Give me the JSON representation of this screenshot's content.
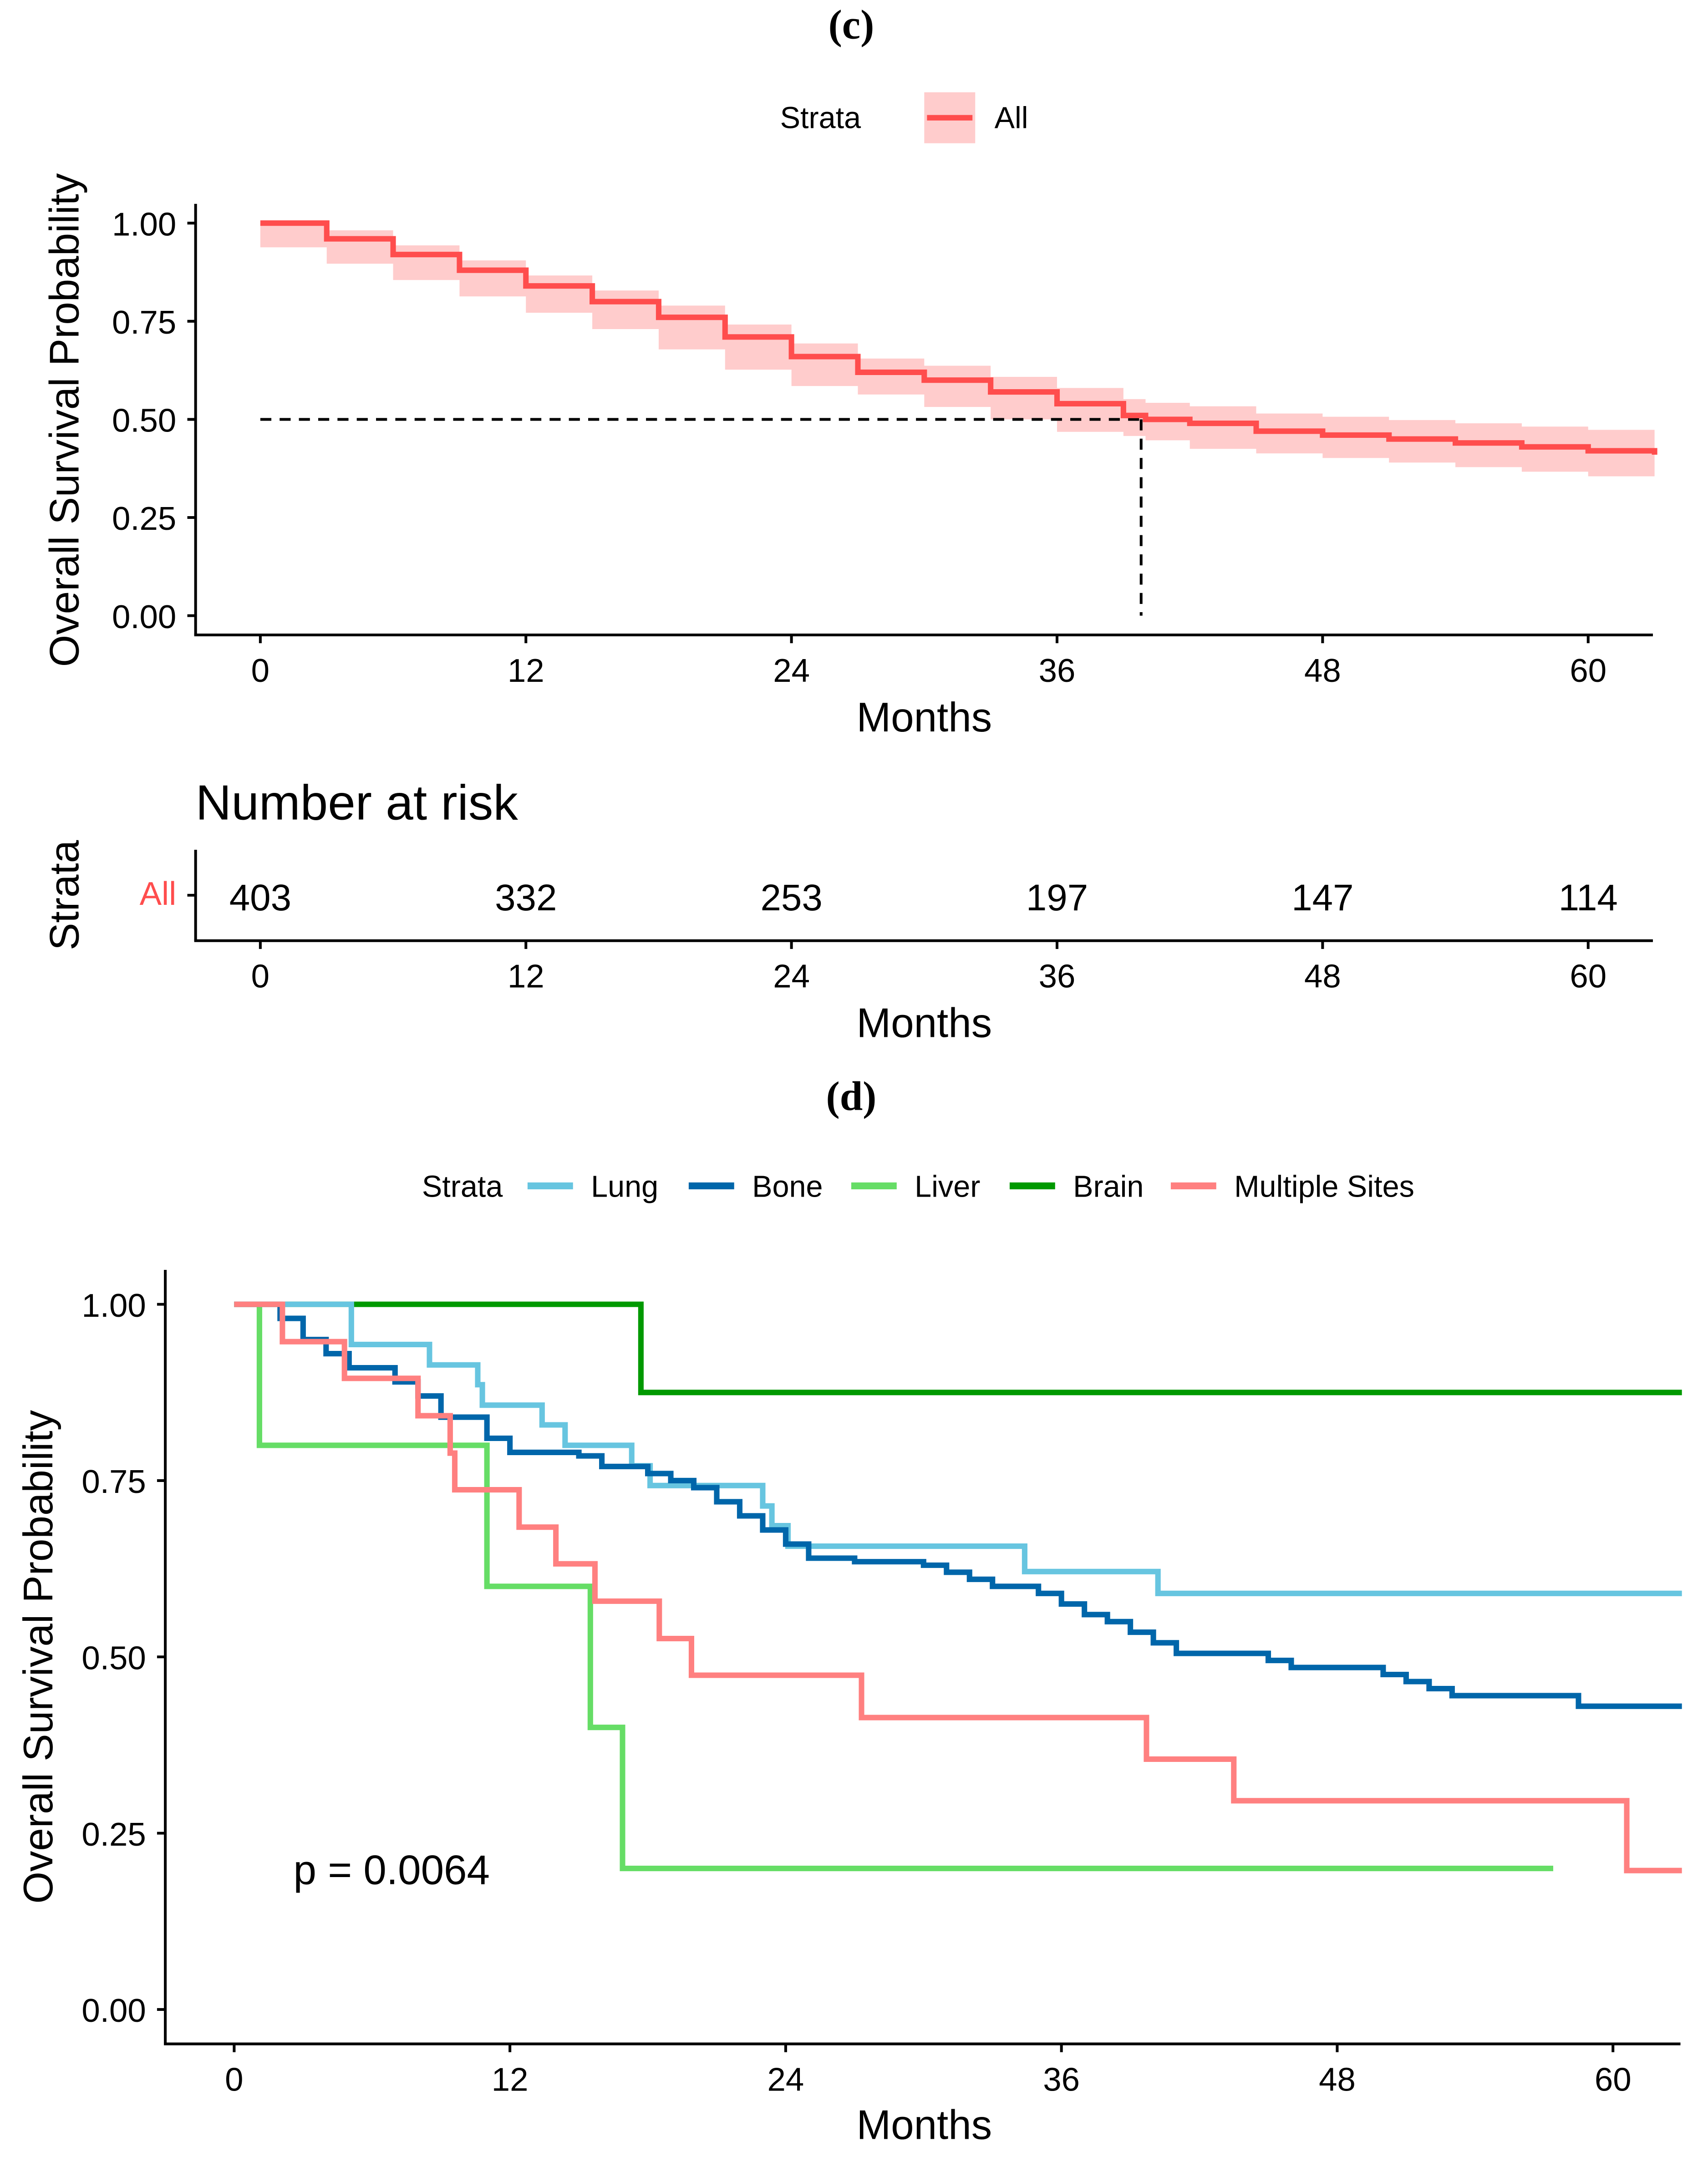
{
  "chart_data": [
    {
      "type": "line",
      "panel_label": "(c)",
      "legend": {
        "title": "Strata",
        "entries": [
          "All"
        ],
        "placement": "top"
      },
      "xlabel": "Months",
      "ylabel": "Overall Survival Probability",
      "xlim": [
        -3,
        63
      ],
      "ylim": [
        0,
        1
      ],
      "xticks": [
        "0",
        "12",
        "24",
        "36",
        "48",
        "60"
      ],
      "yticks": [
        "0.00",
        "0.25",
        "0.50",
        "0.75",
        "1.00"
      ],
      "color": "#ff4d4d",
      "band_color": "#ffcccc",
      "median_survival_months": 39.8,
      "series": [
        {
          "name": "All",
          "x": [
            0,
            3,
            6,
            9,
            12,
            15,
            18,
            21,
            24,
            27,
            30,
            33,
            36,
            39,
            40,
            42,
            45,
            48,
            51,
            54,
            57,
            60,
            63
          ],
          "y": [
            1,
            0.96,
            0.92,
            0.88,
            0.84,
            0.8,
            0.76,
            0.71,
            0.66,
            0.62,
            0.6,
            0.57,
            0.54,
            0.51,
            0.5,
            0.49,
            0.47,
            0.46,
            0.45,
            0.44,
            0.43,
            0.42,
            0.41
          ]
        }
      ],
      "risk_table": {
        "title": "Number at risk",
        "ylabel": "Strata",
        "xlabel": "Months",
        "row_label": "All",
        "times": [
          "0",
          "12",
          "24",
          "36",
          "48",
          "60"
        ],
        "counts": [
          "403",
          "332",
          "253",
          "197",
          "147",
          "114"
        ]
      }
    },
    {
      "type": "line",
      "panel_label": "(d)",
      "legend": {
        "title": "Strata",
        "entries": [
          "Lung",
          "Bone",
          "Liver",
          "Brain",
          "Multiple Sites"
        ],
        "placement": "top"
      },
      "xlabel": "Months",
      "ylabel": "Overall Survival Probability",
      "xlim": [
        -3,
        63
      ],
      "ylim": [
        -0.02,
        1.05
      ],
      "xticks": [
        "0",
        "12",
        "24",
        "36",
        "48",
        "60"
      ],
      "yticks": [
        "0.00",
        "0.25",
        "0.50",
        "0.75",
        "1.00"
      ],
      "annotation": "p = 0.0064",
      "series": [
        {
          "name": "Lung",
          "color": "#67c5e0",
          "x": [
            0,
            5.1,
            8.5,
            10.6,
            10.8,
            13.4,
            14.4,
            17.3,
            18.1,
            23,
            23.4,
            24.1,
            34.4,
            40.2,
            63
          ],
          "y": [
            1,
            0.943,
            0.914,
            0.886,
            0.857,
            0.829,
            0.8,
            0.771,
            0.743,
            0.714,
            0.686,
            0.657,
            0.621,
            0.59,
            0.59
          ]
        },
        {
          "name": "Bone",
          "color": "#0066aa",
          "x": [
            0,
            2,
            3,
            4,
            5,
            7,
            8,
            9,
            11,
            12,
            15,
            16,
            18,
            19,
            20,
            21,
            22,
            23,
            24,
            25,
            27,
            30,
            31,
            32,
            33,
            35,
            36,
            37,
            38,
            39,
            40,
            41,
            44,
            45,
            46,
            48,
            50,
            51,
            52,
            53,
            58.5,
            63
          ],
          "y": [
            1,
            0.98,
            0.95,
            0.93,
            0.91,
            0.89,
            0.87,
            0.84,
            0.81,
            0.79,
            0.785,
            0.77,
            0.76,
            0.75,
            0.74,
            0.72,
            0.7,
            0.68,
            0.66,
            0.64,
            0.635,
            0.63,
            0.62,
            0.61,
            0.6,
            0.59,
            0.575,
            0.56,
            0.55,
            0.535,
            0.52,
            0.505,
            0.505,
            0.495,
            0.485,
            0.485,
            0.475,
            0.465,
            0.455,
            0.445,
            0.43,
            0.43
          ]
        },
        {
          "name": "Liver",
          "color": "#66dd66",
          "x": [
            0,
            1.1,
            11.0,
            15.5,
            16.9,
            57.4
          ],
          "y": [
            1,
            0.8,
            0.6,
            0.4,
            0.2,
            0.2
          ]
        },
        {
          "name": "Brain",
          "color": "#009900",
          "x": [
            0,
            17.7,
            63
          ],
          "y": [
            1,
            0.875,
            0.875
          ]
        },
        {
          "name": "Multiple Sites",
          "color": "#ff8080",
          "x": [
            0,
            2.1,
            4.8,
            8.0,
            9.4,
            9.6,
            12.4,
            14.0,
            15.7,
            18.5,
            19.9,
            27.3,
            39.7,
            43.5,
            60.6,
            63
          ],
          "y": [
            1,
            0.947,
            0.895,
            0.842,
            0.789,
            0.737,
            0.684,
            0.632,
            0.579,
            0.526,
            0.474,
            0.414,
            0.355,
            0.296,
            0.197,
            0.197
          ]
        }
      ]
    }
  ]
}
